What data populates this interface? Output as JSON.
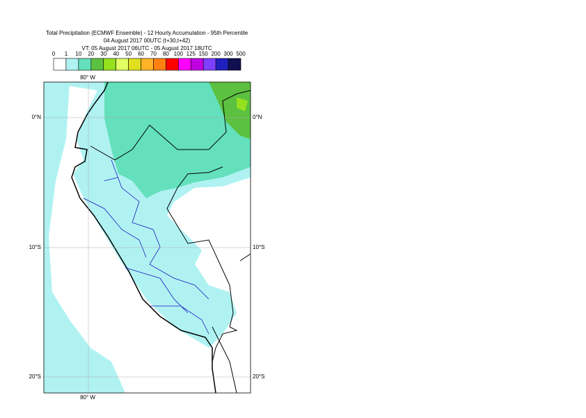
{
  "header": {
    "title": "Total Precipitation (ECMWF Ensemble) - 12 Hourly Accumulation - 95th Percentile",
    "line2": "04 August 2017 00UTC (t+30,t+42)",
    "line3": "VT: 05 August 2017 06UTC - 05 August 2017 18UTC"
  },
  "legend": {
    "labels": [
      "0",
      "1",
      "10",
      "20",
      "30",
      "40",
      "50",
      "60",
      "70",
      "80",
      "100",
      "125",
      "150",
      "200",
      "300",
      "500"
    ],
    "colors": [
      "#ffffff",
      "#b0f2f2",
      "#64e0bc",
      "#5cc040",
      "#96e01e",
      "#e2ff64",
      "#e0e020",
      "#ffb428",
      "#ff8010",
      "#ff0000",
      "#ff00ff",
      "#c000e0",
      "#8040ff",
      "#2020c0",
      "#101050"
    ]
  },
  "map": {
    "lon_label": "80° W",
    "lat_labels": [
      "0°N",
      "10°S",
      "20°S"
    ]
  }
}
